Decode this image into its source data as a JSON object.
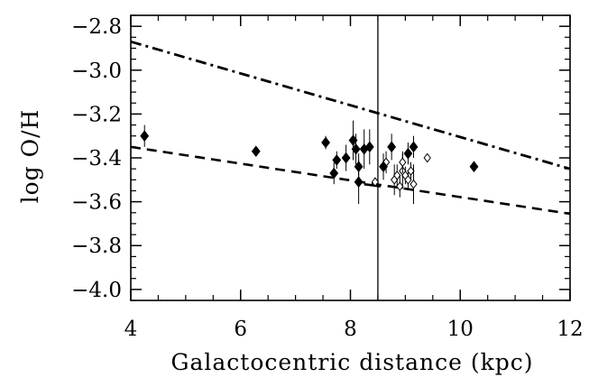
{
  "chart_data": {
    "type": "scatter",
    "xlabel": "Galactocentric distance (kpc)",
    "ylabel": "log O/H",
    "xlim": [
      4,
      12
    ],
    "ylim": [
      -4.05,
      -2.75
    ],
    "xticks": [
      4,
      6,
      8,
      10,
      12
    ],
    "xtick_labels": [
      "4",
      "6",
      "8",
      "10",
      "12"
    ],
    "yticks": [
      -2.8,
      -3.0,
      -3.2,
      -3.4,
      -3.6,
      -3.8,
      -4.0
    ],
    "ytick_labels": [
      "−2.8",
      "−3.0",
      "−3.2",
      "−3.4",
      "−3.6",
      "−3.8",
      "−4.0"
    ],
    "grid": false,
    "legend": false,
    "vertical_line_x": 8.5,
    "filled_points": [
      {
        "x": 4.25,
        "y": -3.3,
        "err": 0.05
      },
      {
        "x": 6.28,
        "y": -3.37,
        "err": 0.02
      },
      {
        "x": 7.55,
        "y": -3.33,
        "err": 0.03
      },
      {
        "x": 7.7,
        "y": -3.47,
        "err": 0.05
      },
      {
        "x": 7.75,
        "y": -3.41,
        "err": 0.04
      },
      {
        "x": 7.92,
        "y": -3.4,
        "err": 0.06
      },
      {
        "x": 8.05,
        "y": -3.32,
        "err": 0.09
      },
      {
        "x": 8.1,
        "y": -3.36,
        "err": 0.07
      },
      {
        "x": 8.15,
        "y": -3.44,
        "err": 0.06
      },
      {
        "x": 8.15,
        "y": -3.51,
        "err": 0.1
      },
      {
        "x": 8.25,
        "y": -3.36,
        "err": 0.09
      },
      {
        "x": 8.35,
        "y": -3.35,
        "err": 0.08
      },
      {
        "x": 8.6,
        "y": -3.44,
        "err": 0.06
      },
      {
        "x": 8.75,
        "y": -3.35,
        "err": 0.06
      },
      {
        "x": 9.05,
        "y": -3.38,
        "err": 0.05
      },
      {
        "x": 9.15,
        "y": -3.35,
        "err": 0.05
      },
      {
        "x": 10.25,
        "y": -3.44,
        "err": 0.02
      }
    ],
    "open_points": [
      {
        "x": 8.45,
        "y": -3.51,
        "err": 0.02
      },
      {
        "x": 8.65,
        "y": -3.42,
        "err": 0.05
      },
      {
        "x": 8.8,
        "y": -3.5,
        "err": 0.07
      },
      {
        "x": 8.85,
        "y": -3.48,
        "err": 0.05
      },
      {
        "x": 8.9,
        "y": -3.53,
        "err": 0.05
      },
      {
        "x": 8.95,
        "y": -3.46,
        "err": 0.08
      },
      {
        "x": 8.95,
        "y": -3.42,
        "err": 0.05
      },
      {
        "x": 9.0,
        "y": -3.48,
        "err": 0.04
      },
      {
        "x": 9.05,
        "y": -3.5,
        "err": 0.04
      },
      {
        "x": 9.1,
        "y": -3.46,
        "err": 0.04
      },
      {
        "x": 9.15,
        "y": -3.52,
        "err": 0.09
      },
      {
        "x": 9.4,
        "y": -3.4,
        "err": 0.02
      }
    ],
    "lines": [
      {
        "style": "dash-dot",
        "x": [
          4,
          12
        ],
        "y": [
          -2.87,
          -3.45
        ]
      },
      {
        "style": "dashed",
        "x": [
          4,
          12
        ],
        "y": [
          -3.35,
          -3.655
        ]
      },
      {
        "style": "solid",
        "x": [
          8.25,
          8.55
        ],
        "y": [
          -3.52,
          -3.53
        ]
      }
    ]
  }
}
